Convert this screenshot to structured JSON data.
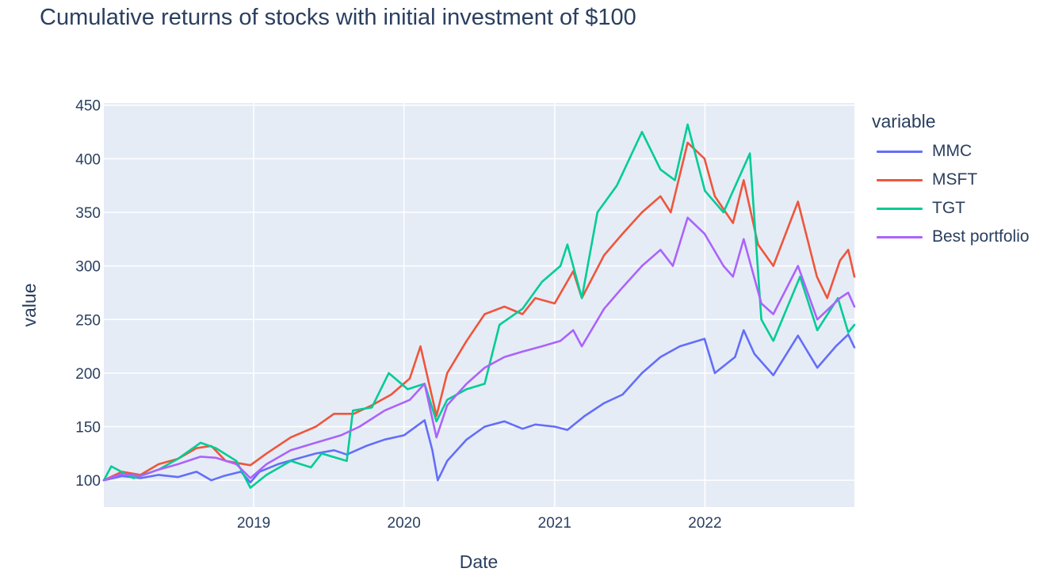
{
  "title": "Cumulative returns of stocks with initial investment of $100",
  "legend": {
    "title": "variable",
    "items": [
      {
        "name": "MMC",
        "color": "#636efa"
      },
      {
        "name": "MSFT",
        "color": "#EF553B"
      },
      {
        "name": "TGT",
        "color": "#00cc96"
      },
      {
        "name": "Best portfolio",
        "color": "#ab63fa"
      }
    ]
  },
  "chart_data": {
    "type": "line",
    "xlabel": "Date",
    "ylabel": "value",
    "xlim": [
      "2018-01-02",
      "2022-12-30"
    ],
    "ylim": [
      75,
      452
    ],
    "x_ticks": [
      "2019",
      "2020",
      "2021",
      "2022"
    ],
    "y_ticks": [
      100,
      150,
      200,
      250,
      300,
      350,
      400,
      450
    ],
    "grid": true,
    "legend_position": "right",
    "plot_background": "#e5ecf6",
    "series": [
      {
        "name": "MMC",
        "color": "#636efa",
        "points": [
          [
            "2018-01-02",
            100
          ],
          [
            "2018-02-15",
            104
          ],
          [
            "2018-04-01",
            102
          ],
          [
            "2018-05-15",
            105
          ],
          [
            "2018-07-01",
            103
          ],
          [
            "2018-08-15",
            108
          ],
          [
            "2018-09-20",
            100
          ],
          [
            "2018-10-20",
            104
          ],
          [
            "2018-12-01",
            108
          ],
          [
            "2018-12-24",
            98
          ],
          [
            "2019-01-15",
            108
          ],
          [
            "2019-03-01",
            115
          ],
          [
            "2019-04-15",
            120
          ],
          [
            "2019-06-01",
            125
          ],
          [
            "2019-07-15",
            128
          ],
          [
            "2019-08-15",
            124
          ],
          [
            "2019-10-01",
            132
          ],
          [
            "2019-11-15",
            138
          ],
          [
            "2020-01-01",
            142
          ],
          [
            "2020-02-20",
            156
          ],
          [
            "2020-03-10",
            128
          ],
          [
            "2020-03-23",
            100
          ],
          [
            "2020-04-15",
            118
          ],
          [
            "2020-06-01",
            138
          ],
          [
            "2020-07-15",
            150
          ],
          [
            "2020-09-01",
            155
          ],
          [
            "2020-10-15",
            148
          ],
          [
            "2020-11-15",
            152
          ],
          [
            "2021-01-01",
            150
          ],
          [
            "2021-02-01",
            147
          ],
          [
            "2021-03-15",
            160
          ],
          [
            "2021-05-01",
            172
          ],
          [
            "2021-06-15",
            180
          ],
          [
            "2021-08-01",
            200
          ],
          [
            "2021-09-15",
            215
          ],
          [
            "2021-11-01",
            225
          ],
          [
            "2021-12-31",
            232
          ],
          [
            "2022-01-25",
            200
          ],
          [
            "2022-03-15",
            215
          ],
          [
            "2022-04-05",
            240
          ],
          [
            "2022-05-01",
            218
          ],
          [
            "2022-06-16",
            198
          ],
          [
            "2022-08-15",
            235
          ],
          [
            "2022-10-01",
            205
          ],
          [
            "2022-11-15",
            225
          ],
          [
            "2022-12-15",
            236
          ],
          [
            "2022-12-30",
            224
          ]
        ]
      },
      {
        "name": "MSFT",
        "color": "#EF553B",
        "points": [
          [
            "2018-01-02",
            100
          ],
          [
            "2018-02-15",
            108
          ],
          [
            "2018-04-01",
            105
          ],
          [
            "2018-05-15",
            115
          ],
          [
            "2018-07-01",
            120
          ],
          [
            "2018-08-15",
            130
          ],
          [
            "2018-09-20",
            132
          ],
          [
            "2018-10-25",
            118
          ],
          [
            "2018-12-24",
            114
          ],
          [
            "2019-02-01",
            125
          ],
          [
            "2019-04-01",
            140
          ],
          [
            "2019-06-01",
            150
          ],
          [
            "2019-07-15",
            162
          ],
          [
            "2019-09-01",
            162
          ],
          [
            "2019-10-15",
            170
          ],
          [
            "2019-12-01",
            180
          ],
          [
            "2020-01-15",
            195
          ],
          [
            "2020-02-10",
            225
          ],
          [
            "2020-03-20",
            160
          ],
          [
            "2020-04-15",
            200
          ],
          [
            "2020-06-01",
            230
          ],
          [
            "2020-07-15",
            255
          ],
          [
            "2020-09-01",
            262
          ],
          [
            "2020-10-15",
            255
          ],
          [
            "2020-11-15",
            270
          ],
          [
            "2021-01-01",
            265
          ],
          [
            "2021-02-15",
            295
          ],
          [
            "2021-03-08",
            270
          ],
          [
            "2021-05-01",
            310
          ],
          [
            "2021-06-15",
            330
          ],
          [
            "2021-08-01",
            350
          ],
          [
            "2021-09-15",
            365
          ],
          [
            "2021-10-10",
            350
          ],
          [
            "2021-11-20",
            415
          ],
          [
            "2021-12-31",
            400
          ],
          [
            "2022-01-25",
            365
          ],
          [
            "2022-03-10",
            340
          ],
          [
            "2022-04-05",
            380
          ],
          [
            "2022-05-10",
            320
          ],
          [
            "2022-06-16",
            300
          ],
          [
            "2022-08-15",
            360
          ],
          [
            "2022-09-30",
            290
          ],
          [
            "2022-10-25",
            270
          ],
          [
            "2022-11-25",
            305
          ],
          [
            "2022-12-15",
            315
          ],
          [
            "2022-12-30",
            290
          ]
        ]
      },
      {
        "name": "TGT",
        "color": "#00cc96",
        "points": [
          [
            "2018-01-02",
            100
          ],
          [
            "2018-01-20",
            113
          ],
          [
            "2018-03-15",
            102
          ],
          [
            "2018-05-15",
            110
          ],
          [
            "2018-07-01",
            120
          ],
          [
            "2018-08-25",
            135
          ],
          [
            "2018-10-01",
            130
          ],
          [
            "2018-11-20",
            118
          ],
          [
            "2018-12-24",
            93
          ],
          [
            "2019-02-01",
            105
          ],
          [
            "2019-04-01",
            118
          ],
          [
            "2019-05-20",
            112
          ],
          [
            "2019-06-15",
            125
          ],
          [
            "2019-08-15",
            118
          ],
          [
            "2019-08-30",
            165
          ],
          [
            "2019-10-15",
            168
          ],
          [
            "2019-11-25",
            200
          ],
          [
            "2020-01-10",
            185
          ],
          [
            "2020-02-20",
            190
          ],
          [
            "2020-03-20",
            155
          ],
          [
            "2020-04-15",
            175
          ],
          [
            "2020-06-01",
            185
          ],
          [
            "2020-07-15",
            190
          ],
          [
            "2020-08-20",
            245
          ],
          [
            "2020-10-15",
            260
          ],
          [
            "2020-12-01",
            285
          ],
          [
            "2021-01-15",
            300
          ],
          [
            "2021-02-01",
            320
          ],
          [
            "2021-03-08",
            270
          ],
          [
            "2021-04-15",
            350
          ],
          [
            "2021-06-01",
            375
          ],
          [
            "2021-08-01",
            425
          ],
          [
            "2021-09-15",
            390
          ],
          [
            "2021-10-20",
            380
          ],
          [
            "2021-11-20",
            432
          ],
          [
            "2022-01-01",
            370
          ],
          [
            "2022-02-15",
            350
          ],
          [
            "2022-04-20",
            405
          ],
          [
            "2022-05-18",
            250
          ],
          [
            "2022-06-16",
            230
          ],
          [
            "2022-08-20",
            290
          ],
          [
            "2022-10-01",
            240
          ],
          [
            "2022-11-20",
            270
          ],
          [
            "2022-12-15",
            238
          ],
          [
            "2022-12-30",
            245
          ]
        ]
      },
      {
        "name": "Best portfolio",
        "color": "#ab63fa",
        "points": [
          [
            "2018-01-02",
            100
          ],
          [
            "2018-02-15",
            106
          ],
          [
            "2018-04-01",
            104
          ],
          [
            "2018-05-15",
            110
          ],
          [
            "2018-07-01",
            115
          ],
          [
            "2018-08-25",
            122
          ],
          [
            "2018-10-01",
            121
          ],
          [
            "2018-11-20",
            115
          ],
          [
            "2018-12-24",
            102
          ],
          [
            "2019-02-01",
            115
          ],
          [
            "2019-04-01",
            128
          ],
          [
            "2019-06-01",
            135
          ],
          [
            "2019-08-01",
            142
          ],
          [
            "2019-09-15",
            150
          ],
          [
            "2019-11-15",
            165
          ],
          [
            "2020-01-15",
            175
          ],
          [
            "2020-02-20",
            190
          ],
          [
            "2020-03-20",
            140
          ],
          [
            "2020-04-15",
            170
          ],
          [
            "2020-06-01",
            190
          ],
          [
            "2020-07-15",
            205
          ],
          [
            "2020-09-01",
            215
          ],
          [
            "2020-10-15",
            220
          ],
          [
            "2020-12-01",
            225
          ],
          [
            "2021-01-15",
            230
          ],
          [
            "2021-02-15",
            240
          ],
          [
            "2021-03-08",
            225
          ],
          [
            "2021-05-01",
            260
          ],
          [
            "2021-06-15",
            280
          ],
          [
            "2021-08-01",
            300
          ],
          [
            "2021-09-15",
            315
          ],
          [
            "2021-10-15",
            300
          ],
          [
            "2021-11-20",
            345
          ],
          [
            "2021-12-31",
            330
          ],
          [
            "2022-02-15",
            300
          ],
          [
            "2022-03-10",
            290
          ],
          [
            "2022-04-05",
            325
          ],
          [
            "2022-05-18",
            265
          ],
          [
            "2022-06-16",
            255
          ],
          [
            "2022-08-15",
            300
          ],
          [
            "2022-10-01",
            250
          ],
          [
            "2022-11-25",
            270
          ],
          [
            "2022-12-15",
            275
          ],
          [
            "2022-12-30",
            262
          ]
        ]
      }
    ]
  }
}
